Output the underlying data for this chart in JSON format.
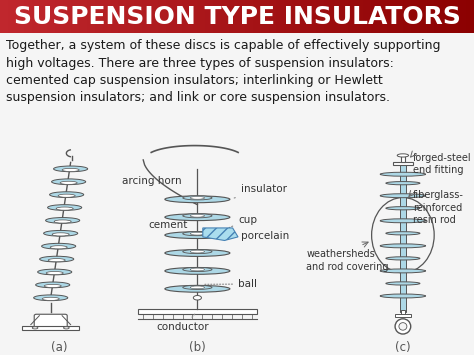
{
  "title": "SUSPENSION TYPE INSULATORS",
  "title_bg_left": "#c0272d",
  "title_bg_right": "#8b0000",
  "title_text_color": "#ffffff",
  "body_bg_color": "#f5f5f5",
  "body_text_color": "#1a1a1a",
  "body_text": "Together, a system of these discs is capable of effectively supporting\nhigh voltages. There are three types of suspension insulators:\ncemented cap suspension insulators; interlinking or Hewlett\nsuspension insulators; and link or core suspension insulators.",
  "label_a": "(a)",
  "label_b": "(b)",
  "label_c": "(c)",
  "diagram_color_light_blue": "#add8e6",
  "diagram_color_outline": "#555555",
  "title_fontsize": 18,
  "body_fontsize": 9.0,
  "label_fontsize": 7.5
}
